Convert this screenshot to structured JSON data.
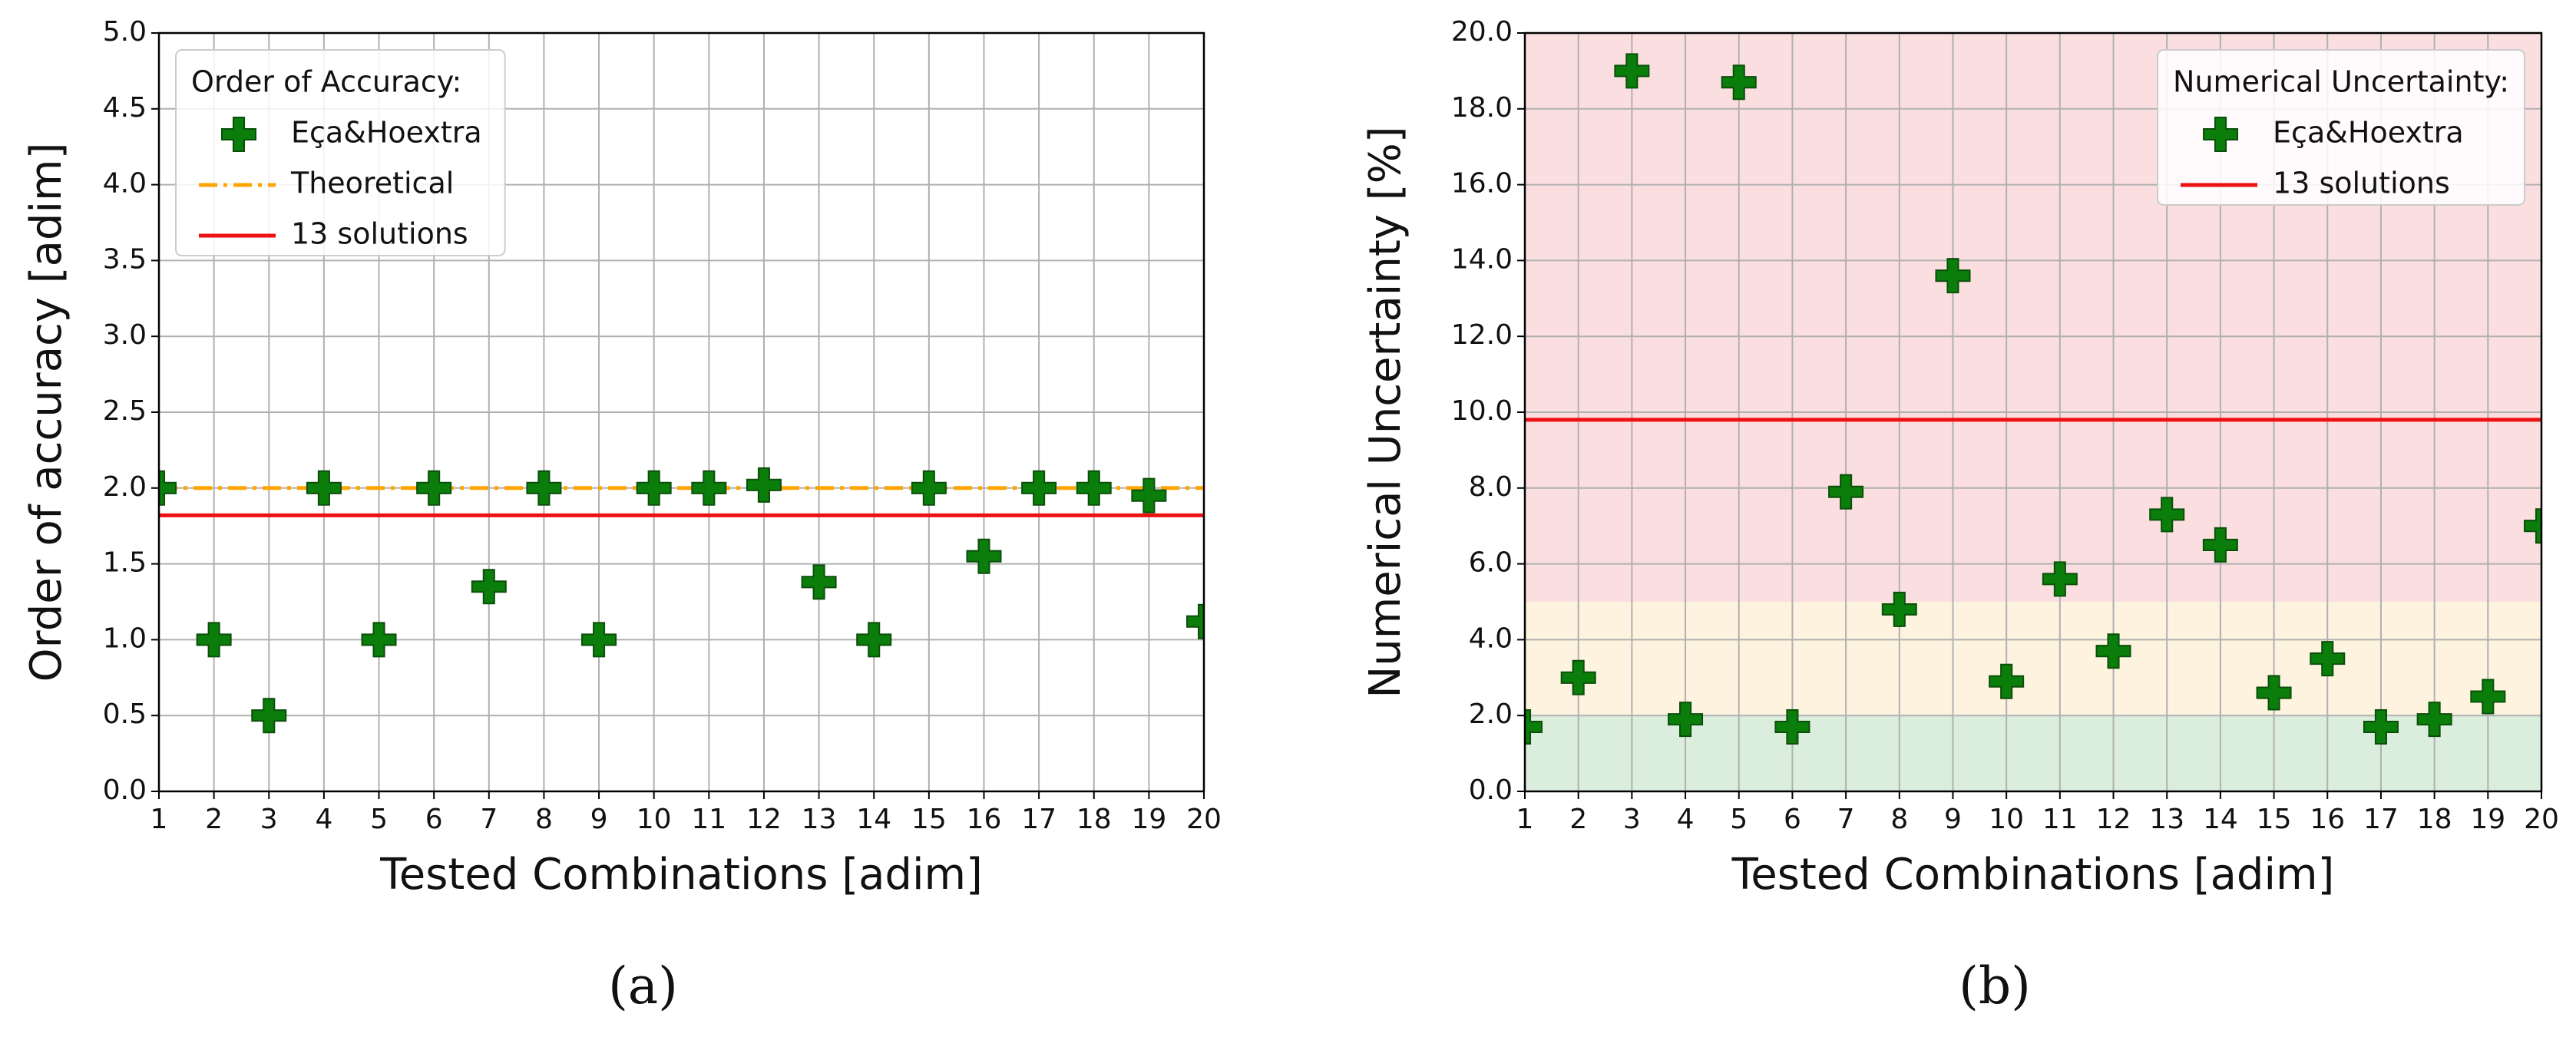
{
  "chart_data": [
    {
      "type": "scatter",
      "caption": "(a)",
      "xlabel": "Tested Combinations [adim]",
      "ylabel": "Order of accuracy [adim]",
      "x": [
        1,
        2,
        3,
        4,
        5,
        6,
        7,
        8,
        9,
        10,
        11,
        12,
        13,
        14,
        15,
        16,
        17,
        18,
        19,
        20
      ],
      "series": [
        {
          "name": "Eça&Hoextra",
          "color": "#0a7d0a",
          "values": [
            2.0,
            1.0,
            0.5,
            2.0,
            1.0,
            2.0,
            1.35,
            2.0,
            1.0,
            2.0,
            2.0,
            2.02,
            1.38,
            1.0,
            2.0,
            1.55,
            2.0,
            2.0,
            1.95,
            1.12
          ]
        }
      ],
      "lines": [
        {
          "name": "Theoretical",
          "value": 2.0,
          "color": "#ffa500",
          "style": "dashdot"
        },
        {
          "name": "13 solutions",
          "value": 1.82,
          "color": "#ee1111",
          "style": "solid"
        }
      ],
      "legend_title": "Order of Accuracy:",
      "legend": "upper left",
      "grid": true,
      "xlim": [
        1,
        20
      ],
      "xticks": [
        1,
        2,
        3,
        4,
        5,
        6,
        7,
        8,
        9,
        10,
        11,
        12,
        13,
        14,
        15,
        16,
        17,
        18,
        19,
        20
      ],
      "ylim": [
        0,
        5
      ],
      "yticks": [
        {
          "value": 0,
          "label": "0.0"
        },
        {
          "value": 0.5,
          "label": "0.5"
        },
        {
          "value": 1,
          "label": "1.0"
        },
        {
          "value": 1.5,
          "label": "1.5"
        },
        {
          "value": 2,
          "label": "2.0"
        },
        {
          "value": 2.5,
          "label": "2.5"
        },
        {
          "value": 3,
          "label": "3.0"
        },
        {
          "value": 3.5,
          "label": "3.5"
        },
        {
          "value": 4,
          "label": "4.0"
        },
        {
          "value": 4.5,
          "label": "4.5"
        },
        {
          "value": 5,
          "label": "5.0"
        }
      ]
    },
    {
      "type": "scatter",
      "caption": "(b)",
      "xlabel": "Tested Combinations [adim]",
      "ylabel": "Numerical Uncertainty [%]",
      "x": [
        1,
        2,
        3,
        4,
        5,
        6,
        7,
        8,
        9,
        10,
        11,
        12,
        13,
        14,
        15,
        16,
        17,
        18,
        19,
        20
      ],
      "series": [
        {
          "name": "Eça&Hoextra",
          "color": "#0a7d0a",
          "values": [
            1.7,
            3.0,
            19.0,
            1.9,
            18.7,
            1.7,
            7.9,
            4.8,
            13.6,
            2.9,
            5.6,
            3.7,
            7.3,
            6.5,
            2.6,
            3.5,
            1.7,
            1.9,
            2.5,
            7.0
          ]
        }
      ],
      "lines": [
        {
          "name": "13 solutions",
          "value": 9.8,
          "color": "#ee1111",
          "style": "solid"
        }
      ],
      "bands": [
        {
          "from": 0,
          "to": 2,
          "color": "#dbeedd"
        },
        {
          "from": 2,
          "to": 5,
          "color": "#fdf3df"
        },
        {
          "from": 5,
          "to": 20,
          "color": "#fbdfe0"
        }
      ],
      "legend_title": "Numerical Uncertainty:",
      "legend": "upper right",
      "grid": true,
      "xlim": [
        1,
        20
      ],
      "xticks": [
        1,
        2,
        3,
        4,
        5,
        6,
        7,
        8,
        9,
        10,
        11,
        12,
        13,
        14,
        15,
        16,
        17,
        18,
        19,
        20
      ],
      "ylim": [
        0,
        20
      ],
      "yticks": [
        {
          "value": 0,
          "label": "0.0"
        },
        {
          "value": 2,
          "label": "2.0"
        },
        {
          "value": 4,
          "label": "4.0"
        },
        {
          "value": 6,
          "label": "6.0"
        },
        {
          "value": 8,
          "label": "8.0"
        },
        {
          "value": 10,
          "label": "10.0"
        },
        {
          "value": 12,
          "label": "12.0"
        },
        {
          "value": 14,
          "label": "14.0"
        },
        {
          "value": 16,
          "label": "16.0"
        },
        {
          "value": 18,
          "label": "18.0"
        },
        {
          "value": 20,
          "label": "20.0"
        }
      ]
    }
  ]
}
